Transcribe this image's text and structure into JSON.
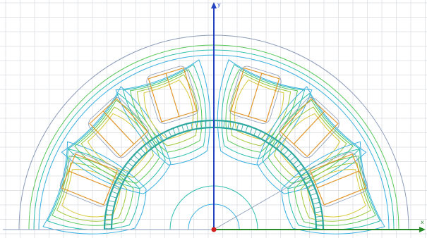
{
  "canvas": {
    "background": "#ffffff",
    "grid_color": "#d8dbe0",
    "outline_color": "#8a9ab8",
    "slot_color": "#e0962e",
    "gap_color": "#2fa8a0"
  },
  "axes": {
    "y_label": "y",
    "x_label": "x",
    "y_color": "#2444c4",
    "x_color": "#2a8a2a",
    "origin_color": "#d02020"
  },
  "flux_line_colors": [
    "#3ab0e0",
    "#2fbfb0",
    "#5ac85a",
    "#a0c83a",
    "#d8c83a"
  ],
  "icons": {
    "origin": "origin-marker-icon",
    "y_arrow": "y-axis-arrow-icon",
    "x_arrow": "x-axis-arrow-icon"
  }
}
